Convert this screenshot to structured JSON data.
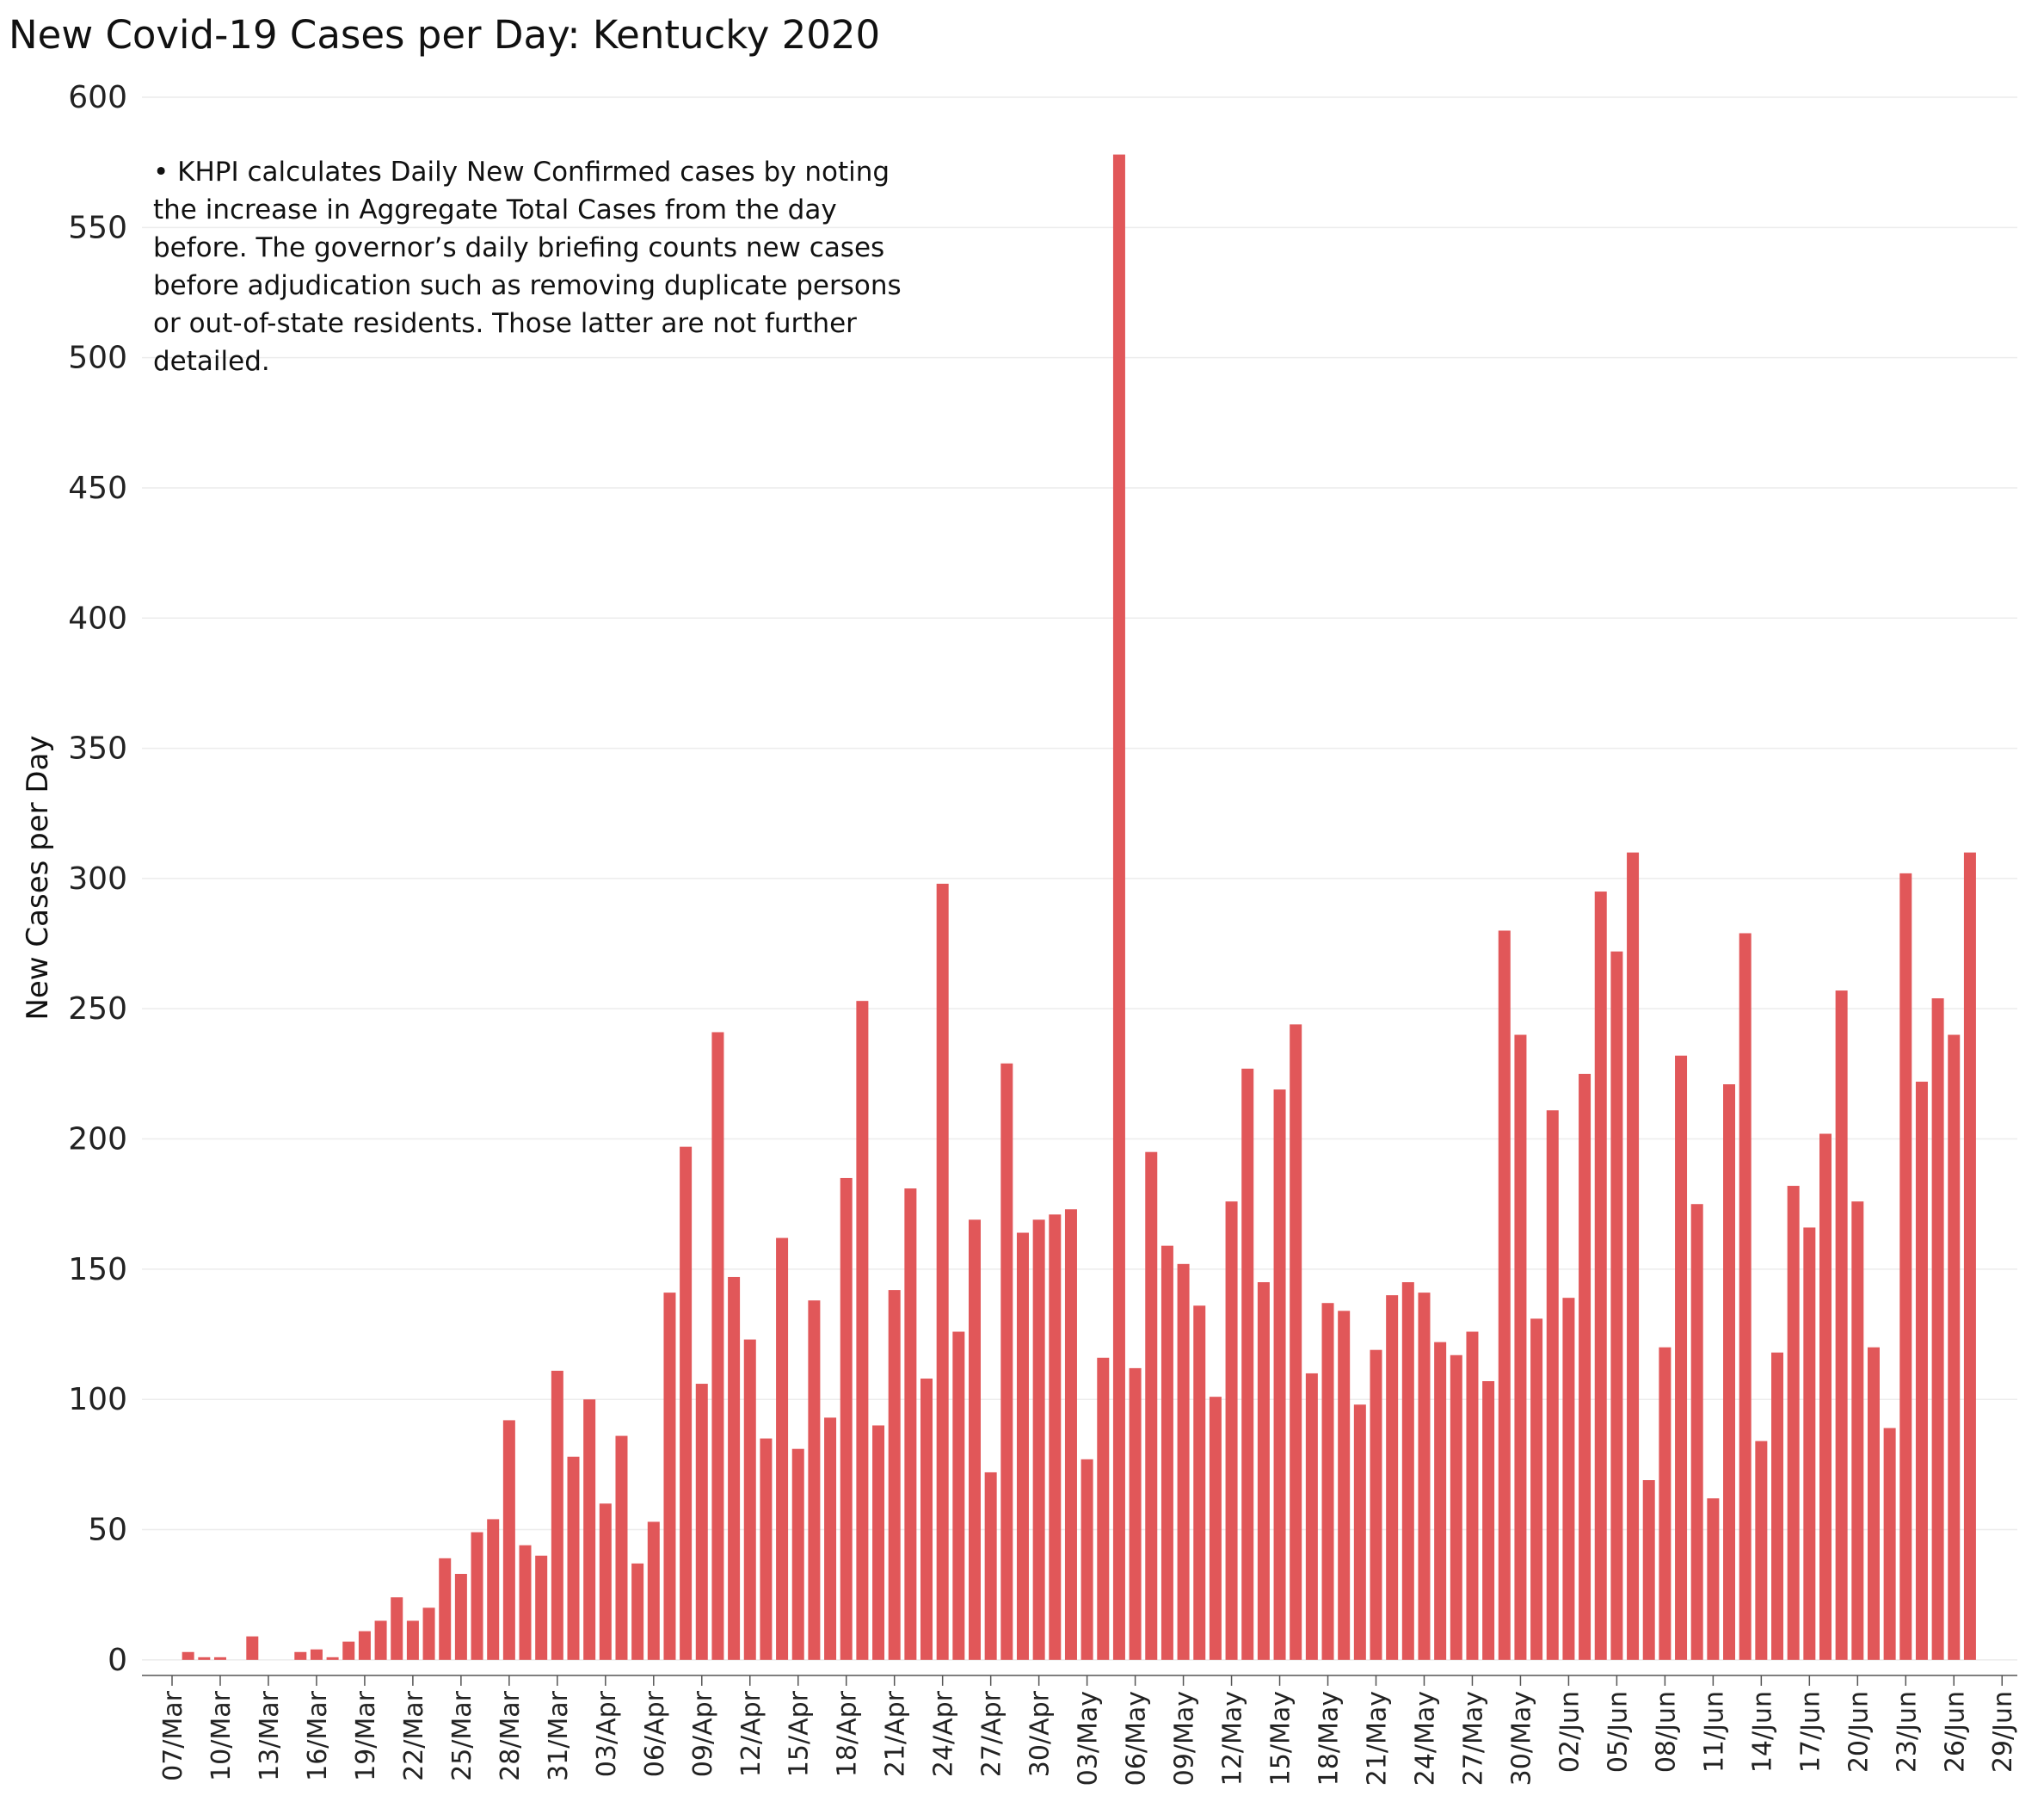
{
  "chart_data": {
    "type": "bar",
    "title": "New Covid-19 Cases per Day:  Kentucky 2020",
    "xlabel": "",
    "ylabel": "New Cases per Day",
    "ylim": [
      -6,
      600
    ],
    "yticks": [
      0,
      50,
      100,
      150,
      200,
      250,
      300,
      350,
      400,
      450,
      500,
      550,
      600
    ],
    "grid": true,
    "bar_color": "#e15759",
    "annotation_lines": [
      "• KHPI calculates Daily New Confirmed cases by noting",
      "the increase in Aggregate Total Cases from the day",
      "before.  The governor’s daily briefing counts new cases",
      "before adjudication such as removing duplicate persons",
      "or out-of-state residents.  Those latter are not further",
      "detailed."
    ],
    "x_tick_labels": [
      "07/Mar",
      "10/Mar",
      "13/Mar",
      "16/Mar",
      "19/Mar",
      "22/Mar",
      "25/Mar",
      "28/Mar",
      "31/Mar",
      "03/Apr",
      "06/Apr",
      "09/Apr",
      "12/Apr",
      "15/Apr",
      "18/Apr",
      "21/Apr",
      "24/Apr",
      "27/Apr",
      "30/Apr",
      "03/May",
      "06/May",
      "09/May",
      "12/May",
      "15/May",
      "18/May",
      "21/May",
      "24/May",
      "27/May",
      "30/May",
      "02/Jun",
      "05/Jun",
      "08/Jun",
      "11/Jun",
      "14/Jun",
      "17/Jun",
      "20/Jun",
      "23/Jun",
      "26/Jun",
      "29/Jun"
    ],
    "start_date": "2020-03-07",
    "values": [
      0,
      3,
      1,
      1,
      null,
      9,
      null,
      null,
      3,
      4,
      1,
      7,
      11,
      15,
      24,
      15,
      20,
      39,
      33,
      49,
      54,
      92,
      44,
      40,
      111,
      78,
      100,
      60,
      86,
      37,
      53,
      141,
      197,
      106,
      241,
      147,
      123,
      85,
      162,
      81,
      138,
      93,
      185,
      253,
      90,
      142,
      181,
      108,
      298,
      126,
      169,
      72,
      229,
      164,
      169,
      171,
      173,
      77,
      116,
      578,
      112,
      195,
      159,
      152,
      136,
      101,
      176,
      227,
      145,
      219,
      244,
      110,
      137,
      134,
      98,
      119,
      140,
      145,
      141,
      122,
      117,
      126,
      107,
      280,
      240,
      131,
      211,
      139,
      225,
      295,
      272,
      310,
      69,
      120,
      232,
      175,
      62,
      221,
      279,
      84,
      118,
      182,
      166,
      202,
      257,
      176,
      120,
      89,
      302,
      222,
      254,
      240,
      310
    ]
  }
}
